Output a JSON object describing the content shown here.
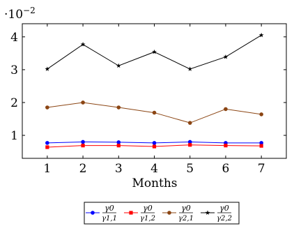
{
  "chart_data": {
    "type": "line",
    "scale_label": {
      "base": "·10",
      "exponent": "−2"
    },
    "xlabel": "Months",
    "ylabel": "",
    "x": [
      1,
      2,
      3,
      4,
      5,
      6,
      7
    ],
    "xlim": [
      0.3,
      7.7
    ],
    "ylim": [
      0.3,
      4.4
    ],
    "y_ticks": [
      1,
      2,
      3,
      4
    ],
    "grid": false,
    "legend_position": "bottom-center",
    "series": [
      {
        "name": "γ0/γ1,1",
        "num": "γ0",
        "den": "γ1,1",
        "color": "#0000ff",
        "marker": "circle",
        "values": [
          0.77,
          0.8,
          0.79,
          0.77,
          0.8,
          0.77,
          0.77
        ]
      },
      {
        "name": "γ0/γ1,2",
        "num": "γ0",
        "den": "γ1,2",
        "color": "#ff0000",
        "marker": "square",
        "values": [
          0.64,
          0.69,
          0.69,
          0.66,
          0.71,
          0.69,
          0.68
        ]
      },
      {
        "name": "γ0/γ2,1",
        "num": "γ0",
        "den": "γ2,1",
        "color": "#8b4513",
        "marker": "circle",
        "values": [
          1.85,
          2.0,
          1.85,
          1.69,
          1.38,
          1.8,
          1.64
        ]
      },
      {
        "name": "γ0/γ2,2",
        "num": "γ0",
        "den": "γ2,2",
        "color": "#000000",
        "marker": "star",
        "values": [
          3.02,
          3.77,
          3.12,
          3.54,
          3.02,
          3.39,
          4.05
        ]
      }
    ]
  }
}
